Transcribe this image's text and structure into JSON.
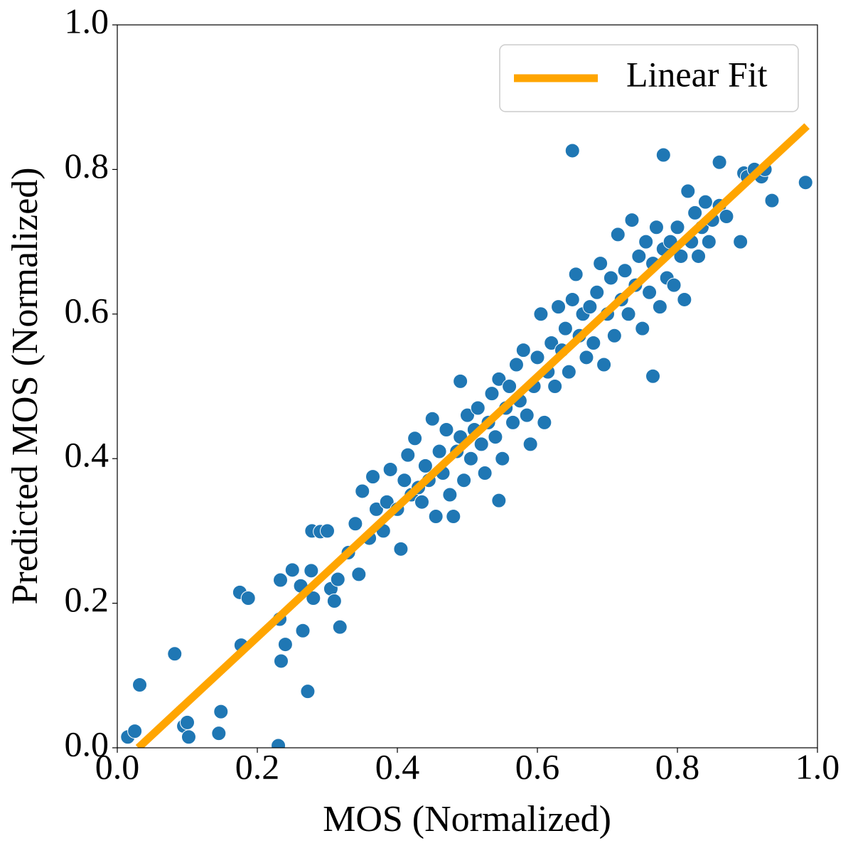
{
  "chart_data": {
    "type": "scatter",
    "xlabel": "MOS (Normalized)",
    "ylabel": "Predicted MOS (Normalized)",
    "color": "#1f77b4",
    "x": [
      0.015,
      0.025,
      0.032,
      0.082,
      0.095,
      0.1,
      0.102,
      0.145,
      0.148,
      0.175,
      0.177,
      0.187,
      0.23,
      0.232,
      0.233,
      0.234,
      0.24,
      0.25,
      0.262,
      0.265,
      0.272,
      0.277,
      0.28,
      0.278,
      0.29,
      0.3,
      0.305,
      0.31,
      0.315,
      0.318,
      0.65,
      0.78,
      0.86,
      0.89,
      0.935,
      0.983,
      0.765,
      0.49,
      0.545,
      0.33,
      0.34,
      0.345,
      0.35,
      0.36,
      0.365,
      0.37,
      0.38,
      0.385,
      0.39,
      0.4,
      0.405,
      0.41,
      0.415,
      0.42,
      0.425,
      0.43,
      0.435,
      0.44,
      0.445,
      0.45,
      0.455,
      0.46,
      0.465,
      0.47,
      0.475,
      0.48,
      0.485,
      0.49,
      0.495,
      0.5,
      0.505,
      0.51,
      0.515,
      0.52,
      0.525,
      0.53,
      0.535,
      0.54,
      0.545,
      0.55,
      0.555,
      0.56,
      0.565,
      0.57,
      0.575,
      0.58,
      0.585,
      0.59,
      0.595,
      0.6,
      0.605,
      0.61,
      0.615,
      0.62,
      0.625,
      0.63,
      0.635,
      0.64,
      0.645,
      0.65,
      0.655,
      0.66,
      0.665,
      0.67,
      0.675,
      0.68,
      0.685,
      0.69,
      0.695,
      0.7,
      0.705,
      0.71,
      0.715,
      0.72,
      0.725,
      0.73,
      0.735,
      0.74,
      0.745,
      0.75,
      0.755,
      0.76,
      0.765,
      0.77,
      0.775,
      0.78,
      0.785,
      0.79,
      0.795,
      0.8,
      0.805,
      0.81,
      0.815,
      0.82,
      0.825,
      0.83,
      0.835,
      0.84,
      0.845,
      0.85,
      0.86,
      0.87,
      0.895,
      0.9,
      0.91,
      0.92,
      0.925
    ],
    "values": [
      0.015,
      0.023,
      0.087,
      0.13,
      0.03,
      0.035,
      0.015,
      0.02,
      0.05,
      0.215,
      0.142,
      0.207,
      0.003,
      0.178,
      0.232,
      0.12,
      0.143,
      0.246,
      0.224,
      0.162,
      0.078,
      0.245,
      0.207,
      0.3,
      0.299,
      0.3,
      0.22,
      0.203,
      0.233,
      0.167,
      0.826,
      0.82,
      0.81,
      0.7,
      0.757,
      0.782,
      0.514,
      0.507,
      0.342,
      0.27,
      0.31,
      0.24,
      0.355,
      0.29,
      0.375,
      0.33,
      0.3,
      0.34,
      0.385,
      0.33,
      0.275,
      0.37,
      0.405,
      0.35,
      0.428,
      0.36,
      0.34,
      0.39,
      0.37,
      0.455,
      0.32,
      0.41,
      0.38,
      0.44,
      0.35,
      0.32,
      0.41,
      0.43,
      0.37,
      0.46,
      0.4,
      0.44,
      0.47,
      0.42,
      0.38,
      0.45,
      0.49,
      0.43,
      0.51,
      0.4,
      0.47,
      0.5,
      0.45,
      0.53,
      0.48,
      0.55,
      0.46,
      0.42,
      0.5,
      0.54,
      0.6,
      0.45,
      0.52,
      0.56,
      0.5,
      0.61,
      0.55,
      0.58,
      0.52,
      0.62,
      0.655,
      0.57,
      0.6,
      0.54,
      0.61,
      0.56,
      0.63,
      0.67,
      0.53,
      0.6,
      0.65,
      0.57,
      0.71,
      0.62,
      0.66,
      0.6,
      0.73,
      0.64,
      0.68,
      0.58,
      0.7,
      0.63,
      0.67,
      0.72,
      0.61,
      0.69,
      0.65,
      0.7,
      0.64,
      0.72,
      0.68,
      0.62,
      0.77,
      0.7,
      0.74,
      0.68,
      0.72,
      0.755,
      0.7,
      0.73,
      0.75,
      0.735,
      0.795,
      0.79,
      0.8,
      0.79,
      0.8
    ],
    "fit": {
      "name": "Linear Fit",
      "color": "#ffa500",
      "x": [
        0.03,
        0.985
      ],
      "values": [
        0,
        0.86
      ]
    },
    "xlim": [
      0,
      1
    ],
    "ylim": [
      0,
      1
    ],
    "xticks": [
      {
        "value": 0,
        "label": "0.0"
      },
      0.2,
      0.4,
      0.6,
      0.8,
      {
        "value": 1,
        "label": "1.0"
      }
    ],
    "yticks": [
      {
        "value": 0,
        "label": "0.0"
      },
      0.2,
      0.4,
      0.6,
      0.8,
      {
        "value": 1,
        "label": "1.0"
      }
    ],
    "legend": "upper right"
  }
}
